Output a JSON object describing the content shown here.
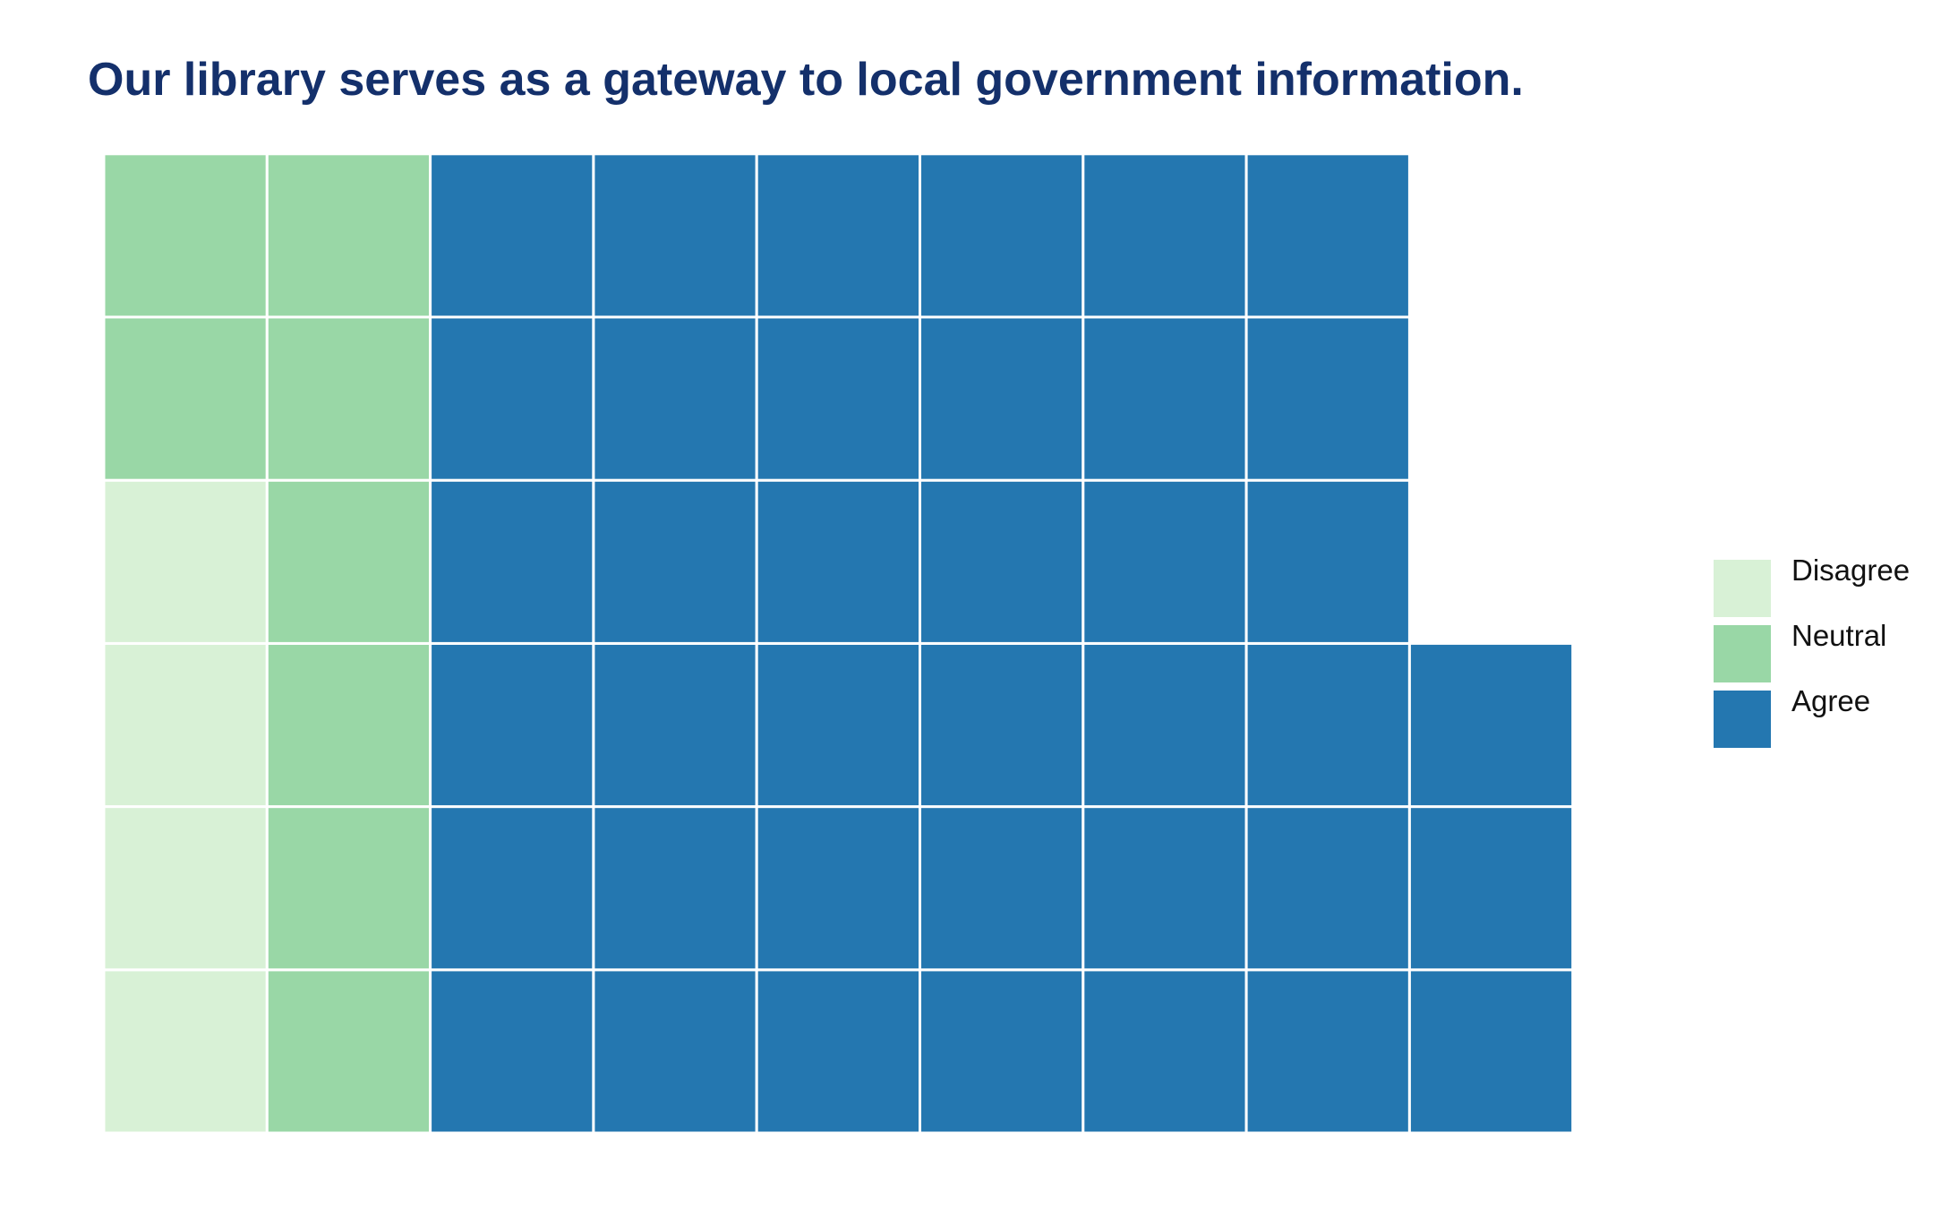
{
  "chart_data": {
    "type": "waffle",
    "title": "Our library serves as a gateway to local government information.",
    "title_color": "#14306b",
    "rows": 6,
    "fill_order": "column-major, bottom-to-top, left-to-right",
    "categories": [
      {
        "name": "Disagree",
        "count": 4,
        "color": "#d8f1d6"
      },
      {
        "name": "Neutral",
        "count": 8,
        "color": "#99d7a6"
      },
      {
        "name": "Agree",
        "count": 39,
        "color": "#2477b0"
      }
    ],
    "legend_position": "right",
    "grid_line_color": "#ffffff"
  }
}
